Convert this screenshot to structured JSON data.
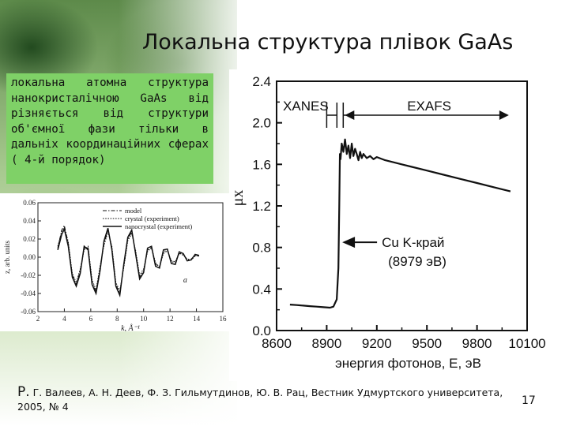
{
  "slide": {
    "title": "Локальна структура плівок GaAs",
    "text": "локальна атомна структура нанокристалічною GaAs від різняється від структури об'ємної фази тільки в дальніх координаційних сферах ( 4-й порядок)",
    "citation_initial": "Р.",
    "citation_rest": " Г. Валеев, А. Н. Деев, Ф. З. Гильмутдинов, Ю. В. Рац, Вестник Удмуртского университета, 2005, № 4",
    "page_number": "17"
  },
  "chart_data": [
    {
      "type": "line",
      "panel_label": "a",
      "xlabel": "k, Å⁻¹",
      "ylabel": "z, arb. units",
      "xlim": [
        2,
        16
      ],
      "ylim": [
        -0.06,
        0.06
      ],
      "x_ticks": [
        "2",
        "4",
        "6",
        "8",
        "10",
        "12",
        "14",
        "16"
      ],
      "y_ticks": [
        "0.06",
        "0.04",
        "0.02",
        "0.00",
        "-0.02",
        "-0.04",
        "-0.06"
      ],
      "legend_position": "top-right",
      "series": [
        {
          "name": "model",
          "x": [
            3.5,
            3.8,
            4.0,
            4.3,
            4.6,
            4.9,
            5.2,
            5.5,
            5.8,
            6.1,
            6.4,
            6.7,
            7.0,
            7.3,
            7.6,
            7.9,
            8.2,
            8.5,
            8.8,
            9.1,
            9.4,
            9.7,
            10.0,
            10.3,
            10.6,
            10.9,
            11.2,
            11.5,
            11.8,
            12.1,
            12.4,
            12.7,
            13.0,
            13.3,
            13.6,
            13.9,
            14.2
          ],
          "y": [
            0.01,
            0.03,
            0.035,
            0.015,
            -0.02,
            -0.03,
            -0.015,
            0.01,
            0.01,
            -0.028,
            -0.038,
            -0.012,
            0.015,
            0.03,
            0.01,
            -0.03,
            -0.04,
            -0.01,
            0.02,
            0.028,
            0.005,
            -0.022,
            -0.015,
            0.008,
            0.01,
            -0.008,
            -0.01,
            0.006,
            0.008,
            -0.005,
            -0.006,
            0.004,
            0.003,
            -0.003,
            -0.002,
            0.002,
            0.001
          ]
        },
        {
          "name": "crystal (experiment)",
          "x": [
            3.5,
            3.8,
            4.0,
            4.3,
            4.6,
            4.9,
            5.2,
            5.5,
            5.8,
            6.1,
            6.4,
            6.7,
            7.0,
            7.3,
            7.6,
            7.9,
            8.2,
            8.5,
            8.8,
            9.1,
            9.4,
            9.7,
            10.0,
            10.3,
            10.6,
            10.9,
            11.2,
            11.5,
            11.8,
            12.1,
            12.4,
            12.7,
            13.0,
            13.3,
            13.6,
            13.9,
            14.2
          ],
          "y": [
            0.012,
            0.028,
            0.033,
            0.017,
            -0.018,
            -0.028,
            -0.013,
            0.008,
            0.012,
            -0.025,
            -0.036,
            -0.01,
            0.013,
            0.028,
            0.012,
            -0.028,
            -0.037,
            -0.012,
            0.018,
            0.026,
            0.007,
            -0.02,
            -0.013,
            0.006,
            0.011,
            -0.006,
            -0.011,
            0.004,
            0.007,
            -0.004,
            -0.005,
            0.005,
            0.002,
            -0.002,
            -0.003,
            0.001,
            0.002
          ]
        },
        {
          "name": "nanocrystal (experiment)",
          "x": [
            3.5,
            3.8,
            4.0,
            4.3,
            4.6,
            4.9,
            5.2,
            5.5,
            5.8,
            6.1,
            6.4,
            6.7,
            7.0,
            7.3,
            7.6,
            7.9,
            8.2,
            8.5,
            8.8,
            9.1,
            9.4,
            9.7,
            10.0,
            10.3,
            10.6,
            10.9,
            11.2,
            11.5,
            11.8,
            12.1,
            12.4,
            12.7,
            13.0,
            13.3,
            13.6,
            13.9,
            14.2
          ],
          "y": [
            0.008,
            0.025,
            0.031,
            0.012,
            -0.022,
            -0.032,
            -0.018,
            0.012,
            0.008,
            -0.03,
            -0.04,
            -0.015,
            0.018,
            0.032,
            0.008,
            -0.032,
            -0.042,
            -0.008,
            0.022,
            0.03,
            0.003,
            -0.024,
            -0.017,
            0.01,
            0.012,
            -0.01,
            -0.012,
            0.008,
            0.009,
            -0.007,
            -0.008,
            0.006,
            0.004,
            -0.004,
            -0.003,
            0.003,
            0.002
          ]
        }
      ]
    },
    {
      "type": "line",
      "xlabel": "энергия фотонов, E, эВ",
      "ylabel": "μx",
      "xlim": [
        8600,
        10100
      ],
      "ylim": [
        0,
        2.4
      ],
      "x_ticks": [
        "8600",
        "8900",
        "9200",
        "9500",
        "9800",
        "10100"
      ],
      "y_ticks": [
        "2.4",
        "2.0",
        "1.6",
        "1.2",
        "0.8",
        "0.4",
        "0.0"
      ],
      "region_labels": [
        {
          "label": "XANES",
          "from": 8900,
          "to": 8980
        },
        {
          "label": "EXAFS",
          "from": 8980,
          "to": 10000
        }
      ],
      "annotation": {
        "line1": "Cu  K-край",
        "line2": "(8979  эВ)",
        "x": 8979,
        "y": 0.85
      },
      "series": [
        {
          "name": "",
          "x": [
            8680,
            8720,
            8760,
            8800,
            8840,
            8880,
            8920,
            8940,
            8960,
            8970,
            8975,
            8979,
            8983,
            8990,
            9000,
            9010,
            9020,
            9030,
            9040,
            9050,
            9060,
            9070,
            9080,
            9090,
            9100,
            9110,
            9120,
            9140,
            9160,
            9180,
            9200,
            9250,
            9300,
            9400,
            9500,
            9600,
            9700,
            9800,
            9900,
            10000
          ],
          "y": [
            0.25,
            0.245,
            0.24,
            0.235,
            0.23,
            0.225,
            0.22,
            0.23,
            0.3,
            0.6,
            1.2,
            1.7,
            1.65,
            1.8,
            1.72,
            1.84,
            1.7,
            1.78,
            1.66,
            1.8,
            1.68,
            1.75,
            1.7,
            1.64,
            1.72,
            1.66,
            1.7,
            1.66,
            1.68,
            1.65,
            1.67,
            1.64,
            1.62,
            1.58,
            1.54,
            1.5,
            1.46,
            1.42,
            1.38,
            1.34
          ]
        }
      ]
    }
  ]
}
